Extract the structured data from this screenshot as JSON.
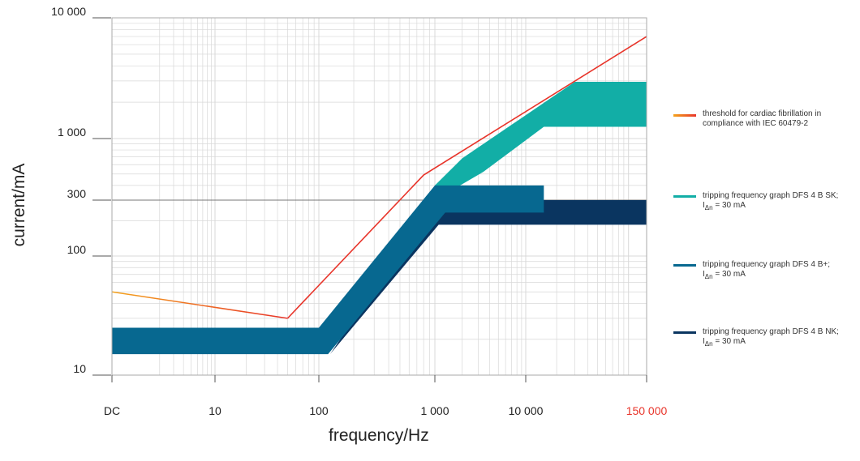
{
  "chart_data": {
    "type": "line",
    "xlabel": "frequency/Hz",
    "ylabel": "current/mA",
    "x_scale": "log",
    "y_scale": "log",
    "x_ticks": [
      "DC",
      "10",
      "100",
      "1 000",
      "10 000",
      "150 000"
    ],
    "y_ticks": [
      "10",
      "100",
      "300",
      "1 000",
      "10 000"
    ],
    "x_tick_values": [
      0.5,
      10,
      100,
      1000,
      10000,
      150000
    ],
    "y_tick_values": [
      10,
      100,
      300,
      1000,
      10000
    ],
    "reference_line_y": 300,
    "grid": true,
    "legend_position": "right",
    "series": [
      {
        "name": "threshold for cardiac fibrillation in compliance with IEC 60479-2",
        "kind": "line",
        "color": "#e8342a",
        "points": [
          [
            0.5,
            50
          ],
          [
            50,
            30
          ],
          [
            800,
            490
          ],
          [
            150000,
            7000
          ]
        ]
      },
      {
        "name": "tripping frequency graph DFS 4 B SK; IΔn = 30 mA",
        "kind": "band",
        "color": "#12aea6",
        "upper": [
          [
            1000,
            400
          ],
          [
            2000,
            680
          ],
          [
            30000,
            2950
          ],
          [
            150000,
            2950
          ]
        ],
        "lower": [
          [
            1000,
            300
          ],
          [
            3400,
            520
          ],
          [
            15000,
            1250
          ],
          [
            150000,
            1250
          ]
        ]
      },
      {
        "name": "tripping frequency graph DFS 4 B NK; IΔn = 30 mA",
        "kind": "band",
        "color": "#0a3560",
        "upper": [
          [
            1000,
            300
          ],
          [
            150000,
            300
          ]
        ],
        "lower": [
          [
            125,
            15
          ],
          [
            1100,
            185
          ],
          [
            150000,
            185
          ]
        ]
      },
      {
        "name": "tripping frequency graph DFS 4 B+; IΔn = 30 mA",
        "kind": "band",
        "color": "#076890",
        "upper": [
          [
            0.5,
            25
          ],
          [
            100,
            25
          ],
          [
            1000,
            400
          ],
          [
            15000,
            400
          ]
        ],
        "lower": [
          [
            0.5,
            15
          ],
          [
            120,
            15
          ],
          [
            1300,
            235
          ],
          [
            15000,
            235
          ]
        ]
      }
    ]
  },
  "legend": {
    "items": [
      {
        "line1": "threshold for cardiac fibrillation in",
        "line2": "compliance with IEC 60479-2",
        "colors": [
          "#f4a31c",
          "#e8342a"
        ]
      },
      {
        "line1": "tripping frequency graph DFS 4 B SK;",
        "line2_prefix": "I",
        "line2_sub": "Δn",
        "line2_suffix": " = 30 mA",
        "colors": [
          "#12aea6"
        ]
      },
      {
        "line1": "tripping frequency graph DFS 4 B+;",
        "line2_prefix": "I",
        "line2_sub": "Δn",
        "line2_suffix": " = 30 mA",
        "colors": [
          "#076890"
        ]
      },
      {
        "line1": "tripping frequency graph DFS 4 B NK;",
        "line2_prefix": "I",
        "line2_sub": "Δn",
        "line2_suffix": " = 30 mA",
        "colors": [
          "#0a3560"
        ]
      }
    ]
  },
  "colors": {
    "grid": "#d8d8d8",
    "frame": "#aaaaaa",
    "reference": "#777777",
    "highlight_tick": "#e8342a",
    "dc_curve_start": "#f4a31c"
  }
}
